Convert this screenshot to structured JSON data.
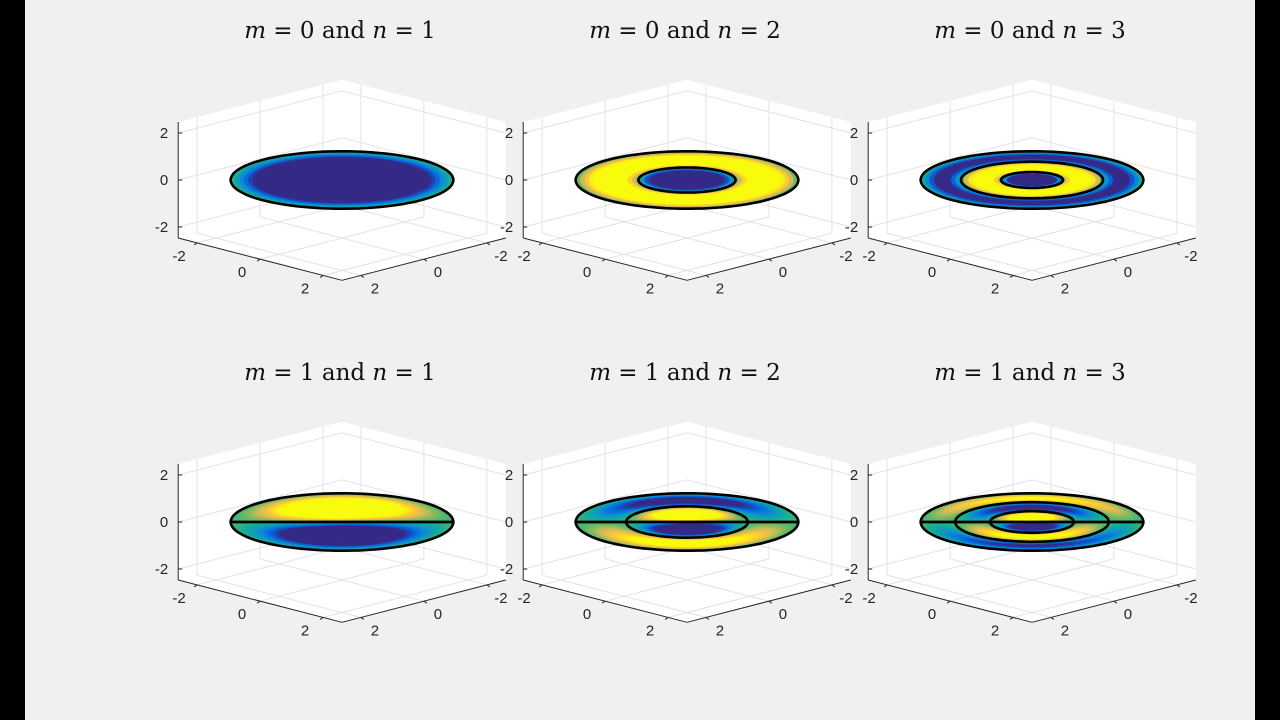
{
  "chart_data": [
    {
      "type": "surface3d",
      "title": {
        "var_m": "m",
        "m_value": "0",
        "conj": "and",
        "var_n": "n",
        "n_value": "1"
      },
      "m": 0,
      "n": 1,
      "xlim": [
        -2,
        2
      ],
      "ylim": [
        -2,
        2
      ],
      "zlim": [
        -2,
        2
      ],
      "xticks": [
        "-2",
        "0",
        "2"
      ],
      "yticks": [
        "-2",
        "0",
        "2"
      ],
      "zticks": [
        "-2",
        "0",
        "2"
      ],
      "grid": true,
      "colormap": "parula"
    },
    {
      "type": "surface3d",
      "title": {
        "var_m": "m",
        "m_value": "0",
        "conj": "and",
        "var_n": "n",
        "n_value": "2"
      },
      "m": 0,
      "n": 2,
      "xlim": [
        -2,
        2
      ],
      "ylim": [
        -2,
        2
      ],
      "zlim": [
        -2,
        2
      ],
      "xticks": [
        "-2",
        "0",
        "2"
      ],
      "yticks": [
        "-2",
        "0",
        "2"
      ],
      "zticks": [
        "-2",
        "0",
        "2"
      ],
      "grid": true,
      "colormap": "parula"
    },
    {
      "type": "surface3d",
      "title": {
        "var_m": "m",
        "m_value": "0",
        "conj": "and",
        "var_n": "n",
        "n_value": "3"
      },
      "m": 0,
      "n": 3,
      "xlim": [
        -2,
        2
      ],
      "ylim": [
        -2,
        2
      ],
      "zlim": [
        -2,
        2
      ],
      "xticks": [
        "-2",
        "0",
        "2"
      ],
      "yticks": [
        "-2",
        "0",
        "2"
      ],
      "zticks": [
        "-2",
        "0",
        "2"
      ],
      "grid": true,
      "colormap": "parula"
    },
    {
      "type": "surface3d",
      "title": {
        "var_m": "m",
        "m_value": "1",
        "conj": "and",
        "var_n": "n",
        "n_value": "1"
      },
      "m": 1,
      "n": 1,
      "xlim": [
        -2,
        2
      ],
      "ylim": [
        -2,
        2
      ],
      "zlim": [
        -2,
        2
      ],
      "xticks": [
        "-2",
        "0",
        "2"
      ],
      "yticks": [
        "-2",
        "0",
        "2"
      ],
      "zticks": [
        "-2",
        "0",
        "2"
      ],
      "grid": true,
      "colormap": "parula"
    },
    {
      "type": "surface3d",
      "title": {
        "var_m": "m",
        "m_value": "1",
        "conj": "and",
        "var_n": "n",
        "n_value": "2"
      },
      "m": 1,
      "n": 2,
      "xlim": [
        -2,
        2
      ],
      "ylim": [
        -2,
        2
      ],
      "zlim": [
        -2,
        2
      ],
      "xticks": [
        "-2",
        "0",
        "2"
      ],
      "yticks": [
        "-2",
        "0",
        "2"
      ],
      "zticks": [
        "-2",
        "0",
        "2"
      ],
      "grid": true,
      "colormap": "parula"
    },
    {
      "type": "surface3d",
      "title": {
        "var_m": "m",
        "m_value": "1",
        "conj": "and",
        "var_n": "n",
        "n_value": "3"
      },
      "m": 1,
      "n": 3,
      "xlim": [
        -2,
        2
      ],
      "ylim": [
        -2,
        2
      ],
      "zlim": [
        -2,
        2
      ],
      "xticks": [
        "-2",
        "0",
        "2"
      ],
      "yticks": [
        "-2",
        "0",
        "2"
      ],
      "zticks": [
        "-2",
        "0",
        "2"
      ],
      "grid": true,
      "colormap": "parula"
    }
  ],
  "colors": {
    "background": "#f0f0f0",
    "axes_face": "#ffffff",
    "grid": "#e2e2e2",
    "axis_line": "#262626",
    "nodal_line": "#000000"
  },
  "palette": [
    "#352a87",
    "#0268e1",
    "#108ed2",
    "#0fae99",
    "#6cba5f",
    "#d1bb59",
    "#fec932",
    "#f9fb0e"
  ]
}
